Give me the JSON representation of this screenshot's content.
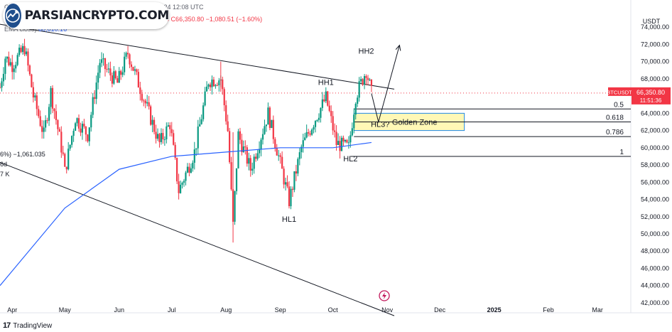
{
  "header": {
    "published_line": "Otto Charting published on TradingView.com, Oct 23, 2024 12:08 UTC",
    "ohlc_line_prefix": "B",
    "ohlc_values": "206.24 C66,350.80 −1,080.51 (−1.60%)",
    "ema_label": "EMA close)",
    "ema_value": "60,610.16"
  },
  "watermark": {
    "text": "PARSIANCRYPTO.COM",
    "icon": "chart-globe-icon"
  },
  "left_fragments": [
    "6%) −1,061.035",
    "6d",
    "7 K"
  ],
  "footer": {
    "brand": "TradingView",
    "icon": "tradingview-logo-icon"
  },
  "lightning_icon": "lightning-icon",
  "colors": {
    "up": "#089981",
    "down": "#f23645",
    "ema": "#2962ff",
    "zone_fill": "#fff59d",
    "zone_border": "#1e88e5",
    "price_tag": "#f23645"
  },
  "chart_data": {
    "type": "candlestick",
    "symbol": "BTCUSDT",
    "quote_unit": "USDT",
    "current_price": 66350.8,
    "current_price_label": "66,350.80",
    "countdown_label": "11:51:36",
    "y_axis": {
      "range": [
        41500,
        75500
      ],
      "ticks": [
        42000,
        44000,
        46000,
        48000,
        50000,
        52000,
        54000,
        56000,
        58000,
        60000,
        62000,
        64000,
        66000,
        68000,
        70000,
        72000,
        74000
      ],
      "tick_labels": [
        "42,000.00",
        "44,000.00",
        "46,000.00",
        "48,000.00",
        "50,000.00",
        "52,000.00",
        "54,000.00",
        "56,000.00",
        "58,000.00",
        "60,000.00",
        "62,000.00",
        "64,000.00",
        "66,000.00",
        "68,000.00",
        "70,000.00",
        "72,000.00",
        "74,000.00"
      ]
    },
    "x_axis": {
      "start_date": "2024-03-25",
      "end_date": "2025-03-20",
      "ticks": [
        {
          "date": "2024-04-01",
          "label": "Apr"
        },
        {
          "date": "2024-05-01",
          "label": "May"
        },
        {
          "date": "2024-06-01",
          "label": "Jun"
        },
        {
          "date": "2024-07-01",
          "label": "Jul"
        },
        {
          "date": "2024-08-01",
          "label": "Aug"
        },
        {
          "date": "2024-09-01",
          "label": "Sep"
        },
        {
          "date": "2024-10-01",
          "label": "Oct"
        },
        {
          "date": "2024-11-01",
          "label": "Nov"
        },
        {
          "date": "2024-12-01",
          "label": "Dec"
        },
        {
          "date": "2025-01-01",
          "label": "2025"
        },
        {
          "date": "2025-02-01",
          "label": "Feb"
        },
        {
          "date": "2025-03-01",
          "label": "Mar"
        }
      ]
    },
    "price_path": [
      [
        "2024-03-25",
        67000
      ],
      [
        "2024-03-28",
        70500
      ],
      [
        "2024-04-01",
        69600
      ],
      [
        "2024-04-08",
        71600
      ],
      [
        "2024-04-13",
        66000
      ],
      [
        "2024-04-19",
        61500
      ],
      [
        "2024-04-23",
        66500
      ],
      [
        "2024-04-30",
        59000
      ],
      [
        "2024-05-01",
        57200
      ],
      [
        "2024-05-07",
        63500
      ],
      [
        "2024-05-14",
        61500
      ],
      [
        "2024-05-21",
        70000
      ],
      [
        "2024-05-31",
        67500
      ],
      [
        "2024-06-06",
        71000
      ],
      [
        "2024-06-12",
        67500
      ],
      [
        "2024-06-24",
        60500
      ],
      [
        "2024-06-30",
        62800
      ],
      [
        "2024-07-05",
        55000
      ],
      [
        "2024-07-14",
        59500
      ],
      [
        "2024-07-22",
        67800
      ],
      [
        "2024-07-29",
        68000
      ],
      [
        "2024-08-02",
        62000
      ],
      [
        "2024-08-05",
        51000
      ],
      [
        "2024-08-08",
        61500
      ],
      [
        "2024-08-15",
        57500
      ],
      [
        "2024-08-25",
        64000
      ],
      [
        "2024-08-31",
        59000
      ],
      [
        "2024-09-06",
        53800
      ],
      [
        "2024-09-13",
        60000
      ],
      [
        "2024-09-20",
        63000
      ],
      [
        "2024-09-27",
        65800
      ],
      [
        "2024-10-03",
        60500
      ],
      [
        "2024-10-10",
        60000
      ],
      [
        "2024-10-14",
        66000
      ],
      [
        "2024-10-20",
        69000
      ],
      [
        "2024-10-23",
        66350
      ]
    ],
    "ema_path": [
      [
        "2024-03-25",
        44000
      ],
      [
        "2024-05-01",
        53000
      ],
      [
        "2024-06-01",
        57500
      ],
      [
        "2024-07-01",
        59000
      ],
      [
        "2024-08-01",
        59500
      ],
      [
        "2024-09-01",
        60000
      ],
      [
        "2024-10-01",
        60000
      ],
      [
        "2024-10-23",
        60610
      ]
    ],
    "trendlines": [
      {
        "name": "resistance",
        "from": [
          "2024-03-20",
          74500
        ],
        "to": [
          "2024-11-05",
          66800
        ]
      },
      {
        "name": "support",
        "from": [
          "2024-03-20",
          58700
        ],
        "to": [
          "2024-11-05",
          40500
        ]
      }
    ],
    "projection": [
      [
        "2024-10-23",
        66300
      ],
      [
        "2024-10-27",
        63000
      ],
      [
        "2024-11-08",
        71900
      ]
    ],
    "golden_zone": {
      "label": "Golden Zone",
      "start": "2024-10-13",
      "end": "2024-12-15",
      "top": 64000,
      "bottom": 62000
    },
    "fib_levels": [
      {
        "ratio": "0.5",
        "price": 64500,
        "start": "2024-10-13"
      },
      {
        "ratio": "0.618",
        "price": 63000,
        "start": "2024-10-13"
      },
      {
        "ratio": "0.786",
        "price": 61300,
        "start": "2024-10-13"
      },
      {
        "ratio": "1",
        "price": 59000,
        "start": "2024-10-11"
      }
    ],
    "annotations": [
      {
        "text": "HH2",
        "date": "2024-10-20",
        "price": 70900
      },
      {
        "text": "HH1",
        "date": "2024-09-27",
        "price": 67300
      },
      {
        "text": "HL3?",
        "date": "2024-10-28",
        "price": 62400
      },
      {
        "text": "HL2",
        "date": "2024-10-11",
        "price": 58400
      },
      {
        "text": "HL1",
        "date": "2024-09-06",
        "price": 51400
      }
    ]
  }
}
